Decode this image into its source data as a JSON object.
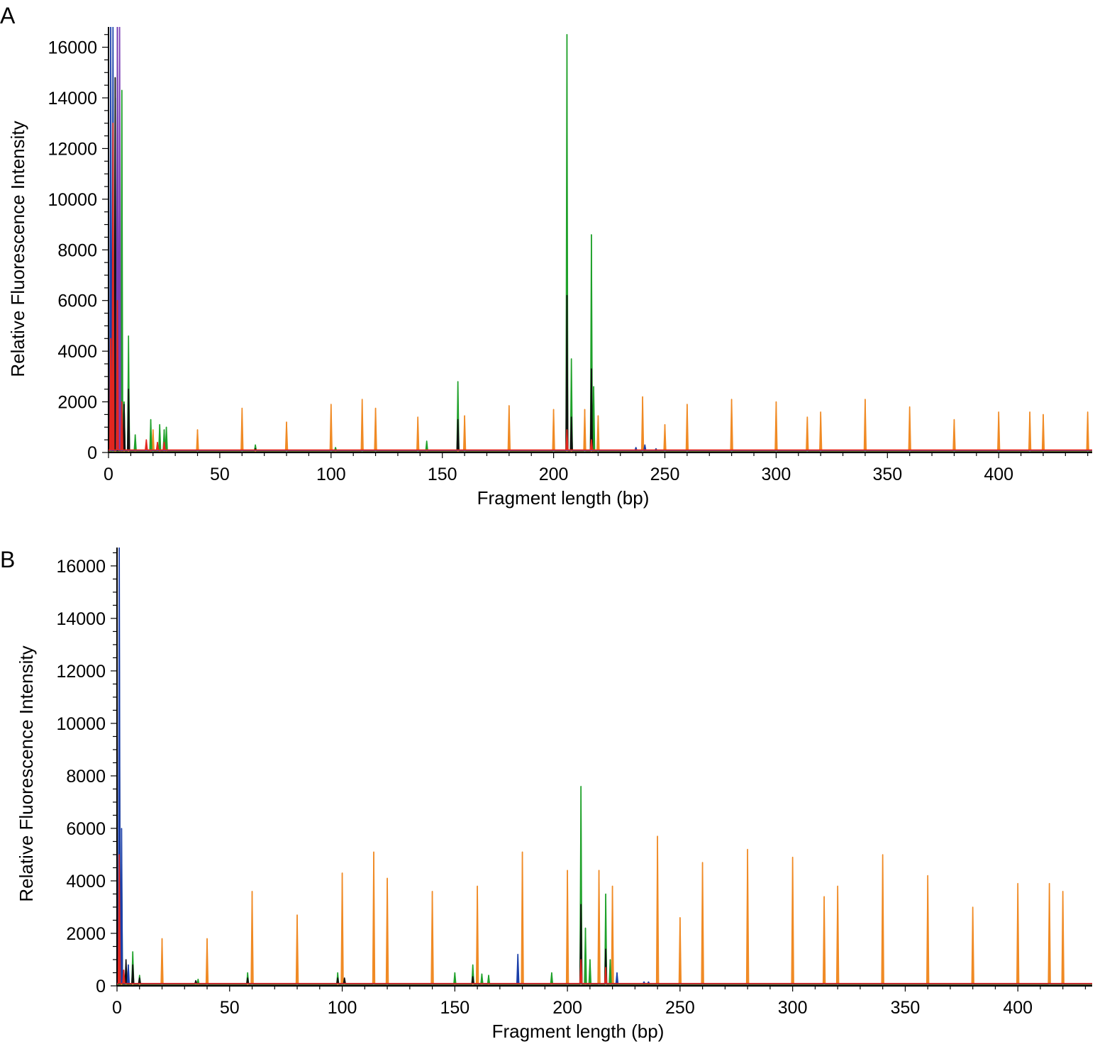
{
  "chart_data": [
    {
      "panel_label": "A",
      "type": "line",
      "xlabel": "Fragment length (bp)",
      "ylabel": "Relative Fluorescence Intensity",
      "xlim": [
        0,
        442
      ],
      "ylim": [
        0,
        16800
      ],
      "x_ticks": [
        0,
        50,
        100,
        150,
        200,
        250,
        300,
        350,
        400
      ],
      "y_ticks": [
        0,
        2000,
        4000,
        6000,
        8000,
        10000,
        12000,
        14000,
        16000
      ],
      "grid": false,
      "legend": "none",
      "series": [
        {
          "color": "#f08a24",
          "peaks": [
            [
              2,
              9000
            ],
            [
              20,
              900
            ],
            [
              40,
              900
            ],
            [
              60,
              1750
            ],
            [
              80,
              1200
            ],
            [
              100,
              1900
            ],
            [
              114,
              2100
            ],
            [
              120,
              1750
            ],
            [
              139,
              1400
            ],
            [
              160,
              1450
            ],
            [
              180,
              1850
            ],
            [
              200,
              1700
            ],
            [
              214,
              1700
            ],
            [
              220,
              1450
            ],
            [
              240,
              2200
            ],
            [
              250,
              1100
            ],
            [
              260,
              1900
            ],
            [
              280,
              2100
            ],
            [
              300,
              2000
            ],
            [
              314,
              1400
            ],
            [
              320,
              1600
            ],
            [
              340,
              2100
            ],
            [
              360,
              1800
            ],
            [
              380,
              1300
            ],
            [
              400,
              1600
            ],
            [
              414,
              1600
            ],
            [
              420,
              1500
            ],
            [
              440,
              1600
            ]
          ]
        },
        {
          "color": "#1fa12a",
          "peaks": [
            [
              3,
              14000
            ],
            [
              6,
              14300
            ],
            [
              7,
              2000
            ],
            [
              9,
              4600
            ],
            [
              12,
              700
            ],
            [
              19,
              1300
            ],
            [
              23,
              1100
            ],
            [
              25,
              900
            ],
            [
              26,
              1000
            ],
            [
              66,
              300
            ],
            [
              102,
              200
            ],
            [
              143,
              450
            ],
            [
              157,
              2800
            ],
            [
              206,
              16500
            ],
            [
              208,
              3700
            ],
            [
              217,
              8600
            ],
            [
              218,
              2600
            ]
          ]
        },
        {
          "color": "#111111",
          "peaks": [
            [
              1,
              10800
            ],
            [
              3,
              14800
            ],
            [
              5,
              6500
            ],
            [
              7,
              1900
            ],
            [
              9,
              2500
            ],
            [
              66,
              150
            ],
            [
              157,
              1300
            ],
            [
              206,
              6200
            ],
            [
              208,
              1400
            ],
            [
              217,
              3300
            ]
          ]
        },
        {
          "color": "#1a3fa8",
          "peaks": [
            [
              1,
              16800
            ],
            [
              2,
              16800
            ],
            [
              4,
              16800
            ],
            [
              237,
              200
            ],
            [
              241,
              300
            ],
            [
              246,
              150
            ]
          ]
        },
        {
          "color": "#7a3db5",
          "peaks": [
            [
              4,
              16800
            ],
            [
              5,
              16800
            ]
          ]
        },
        {
          "color": "#e3261f",
          "peaks": [
            [
              1,
              4500
            ],
            [
              2,
              13000
            ],
            [
              4,
              6000
            ],
            [
              6,
              2000
            ],
            [
              17,
              500
            ],
            [
              22,
              400
            ],
            [
              25,
              400
            ],
            [
              206,
              900
            ],
            [
              217,
              500
            ]
          ]
        }
      ]
    },
    {
      "panel_label": "B",
      "type": "line",
      "xlabel": "Fragment length (bp)",
      "ylabel": "Relative Fluorescence Intensity",
      "xlim": [
        0,
        433
      ],
      "ylim": [
        0,
        16700
      ],
      "x_ticks": [
        0,
        50,
        100,
        150,
        200,
        250,
        300,
        350,
        400
      ],
      "y_ticks": [
        0,
        2000,
        4000,
        6000,
        8000,
        10000,
        12000,
        14000,
        16000
      ],
      "grid": false,
      "legend": "none",
      "series": [
        {
          "color": "#f08a24",
          "peaks": [
            [
              20,
              1800
            ],
            [
              40,
              1800
            ],
            [
              60,
              3600
            ],
            [
              80,
              2700
            ],
            [
              100,
              4300
            ],
            [
              114,
              5100
            ],
            [
              120,
              4100
            ],
            [
              140,
              3600
            ],
            [
              160,
              3800
            ],
            [
              180,
              5100
            ],
            [
              200,
              4400
            ],
            [
              214,
              4400
            ],
            [
              220,
              3800
            ],
            [
              240,
              5700
            ],
            [
              250,
              2600
            ],
            [
              260,
              4700
            ],
            [
              280,
              5200
            ],
            [
              300,
              4900
            ],
            [
              314,
              3400
            ],
            [
              320,
              3800
            ],
            [
              340,
              5000
            ],
            [
              360,
              4200
            ],
            [
              380,
              3000
            ],
            [
              400,
              3900
            ],
            [
              414,
              3900
            ],
            [
              420,
              3600
            ]
          ]
        },
        {
          "color": "#1fa12a",
          "peaks": [
            [
              2,
              4800
            ],
            [
              7,
              1300
            ],
            [
              10,
              400
            ],
            [
              36,
              250
            ],
            [
              58,
              500
            ],
            [
              98,
              500
            ],
            [
              150,
              500
            ],
            [
              158,
              800
            ],
            [
              162,
              450
            ],
            [
              165,
              400
            ],
            [
              193,
              500
            ],
            [
              206,
              7600
            ],
            [
              208,
              2200
            ],
            [
              210,
              1000
            ],
            [
              217,
              3500
            ],
            [
              219,
              1000
            ]
          ]
        },
        {
          "color": "#111111",
          "peaks": [
            [
              1,
              13000
            ],
            [
              2,
              2500
            ],
            [
              4,
              1000
            ],
            [
              7,
              800
            ],
            [
              10,
              300
            ],
            [
              35,
              200
            ],
            [
              58,
              300
            ],
            [
              98,
              300
            ],
            [
              101,
              300
            ],
            [
              158,
              350
            ],
            [
              206,
              3100
            ],
            [
              217,
              1400
            ]
          ]
        },
        {
          "color": "#1a3fa8",
          "peaks": [
            [
              1,
              16700
            ],
            [
              2,
              6000
            ],
            [
              5,
              800
            ],
            [
              178,
              1200
            ],
            [
              222,
              500
            ],
            [
              234,
              150
            ],
            [
              236,
              150
            ]
          ]
        },
        {
          "color": "#e3261f",
          "peaks": [
            [
              1,
              5000
            ],
            [
              3,
              600
            ],
            [
              206,
              1000
            ],
            [
              217,
              700
            ]
          ]
        }
      ]
    }
  ]
}
